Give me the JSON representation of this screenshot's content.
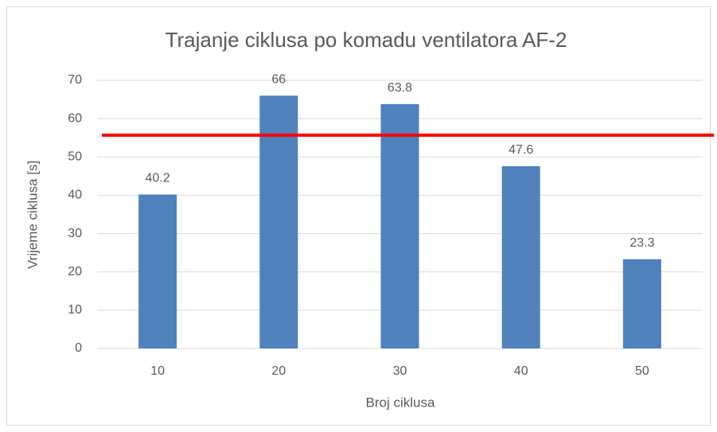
{
  "chart_data": {
    "type": "bar",
    "title": "Trajanje ciklusa po komadu ventilatora AF-2",
    "x_label": "Broj ciklusa",
    "y_label": "Vrijeme ciklusa [s]",
    "categories": [
      "10",
      "20",
      "30",
      "40",
      "50"
    ],
    "values": [
      40.2,
      66,
      63.8,
      47.6,
      23.3
    ],
    "color": "#4f81bd",
    "ylim": [
      0,
      70
    ],
    "yticks": [
      0,
      10,
      20,
      30,
      40,
      50,
      60,
      70
    ],
    "grid": true,
    "reference_line": {
      "value": 55.7,
      "color": "#ff0000"
    }
  }
}
